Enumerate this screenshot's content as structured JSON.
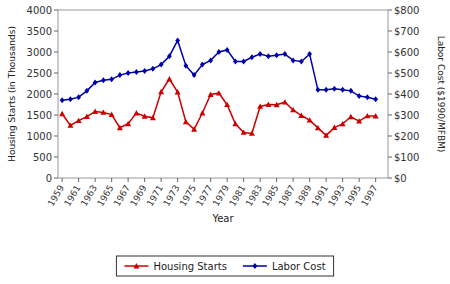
{
  "chart_data": {
    "type": "line",
    "xlabel": "Year",
    "ylabel": "Housing Starts (in Thousands)",
    "y2label": "Labor Cost ($1990/MFBM)",
    "x": [
      1959,
      1960,
      1961,
      1962,
      1963,
      1964,
      1965,
      1966,
      1967,
      1968,
      1969,
      1970,
      1971,
      1972,
      1973,
      1974,
      1975,
      1976,
      1977,
      1978,
      1979,
      1980,
      1981,
      1982,
      1983,
      1984,
      1985,
      1986,
      1987,
      1988,
      1989,
      1990,
      1991,
      1992,
      1993,
      1994,
      1995,
      1996,
      1997
    ],
    "xlim": [
      1958.5,
      1998.5
    ],
    "xticks": [
      1959,
      1961,
      1963,
      1965,
      1967,
      1969,
      1971,
      1973,
      1975,
      1977,
      1979,
      1981,
      1983,
      1985,
      1987,
      1989,
      1991,
      1993,
      1995,
      1997
    ],
    "ylim": [
      0,
      4000
    ],
    "yticks": [
      0,
      500,
      1000,
      1500,
      2000,
      2500,
      3000,
      3500,
      4000
    ],
    "y2lim": [
      0,
      800
    ],
    "y2ticks": [
      {
        "value": 0,
        "label": "$0"
      },
      {
        "value": 100,
        "label": "$100"
      },
      {
        "value": 200,
        "label": "$200"
      },
      {
        "value": 300,
        "label": "$300"
      },
      {
        "value": 400,
        "label": "$400"
      },
      {
        "value": 500,
        "label": "$500"
      },
      {
        "value": 600,
        "label": "$600"
      },
      {
        "value": 700,
        "label": "$700"
      },
      {
        "value": 800,
        "label": "$800"
      }
    ],
    "grid": false,
    "legend": "bottom",
    "series": [
      {
        "name": "Housing Starts",
        "color": "#cc0000",
        "marker": "triangle",
        "values": [
          1530,
          1252,
          1365,
          1462,
          1582,
          1561,
          1510,
          1196,
          1292,
          1545,
          1469,
          1434,
          2052,
          2357,
          2045,
          1338,
          1160,
          1548,
          1987,
          2020,
          1745,
          1292,
          1084,
          1062,
          1703,
          1750,
          1742,
          1805,
          1620,
          1488,
          1376,
          1193,
          1014,
          1200,
          1288,
          1457,
          1354,
          1477,
          1474
        ]
      },
      {
        "name": "Labor Cost",
        "color": "#0000aa",
        "marker": "diamond",
        "axis": "y2",
        "values": [
          370,
          375,
          385,
          415,
          455,
          465,
          470,
          490,
          500,
          505,
          510,
          520,
          540,
          580,
          655,
          535,
          490,
          540,
          560,
          600,
          610,
          555,
          555,
          575,
          590,
          580,
          585,
          590,
          560,
          555,
          590,
          420,
          420,
          425,
          420,
          415,
          390,
          385,
          375
        ]
      }
    ]
  }
}
